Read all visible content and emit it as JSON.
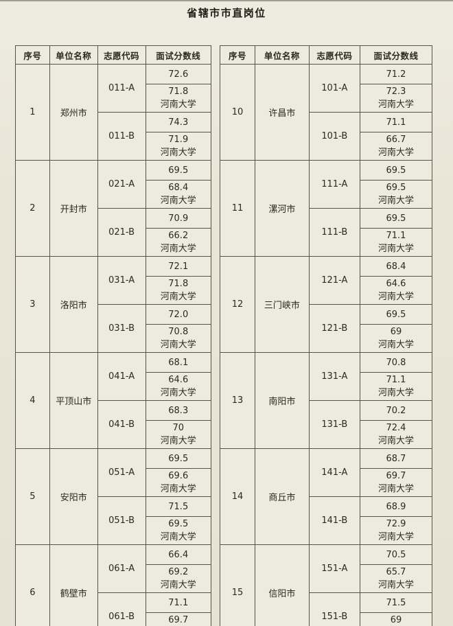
{
  "title": "省辖市市直岗位",
  "columns": [
    "序号",
    "单位名称",
    "志愿代码",
    "面试分数线"
  ],
  "university": "河南大学",
  "left_rows": [
    {
      "seq": "1",
      "city": "郑州市",
      "codes": [
        {
          "code": "011-A",
          "s1": "72.6",
          "s2": "71.8"
        },
        {
          "code": "011-B",
          "s1": "74.3",
          "s2": "71.9"
        }
      ]
    },
    {
      "seq": "2",
      "city": "开封市",
      "codes": [
        {
          "code": "021-A",
          "s1": "69.5",
          "s2": "68.4"
        },
        {
          "code": "021-B",
          "s1": "70.9",
          "s2": "66.2"
        }
      ]
    },
    {
      "seq": "3",
      "city": "洛阳市",
      "codes": [
        {
          "code": "031-A",
          "s1": "72.1",
          "s2": "71.8"
        },
        {
          "code": "031-B",
          "s1": "72.0",
          "s2": "70.8"
        }
      ]
    },
    {
      "seq": "4",
      "city": "平顶山市",
      "codes": [
        {
          "code": "041-A",
          "s1": "68.1",
          "s2": "64.6"
        },
        {
          "code": "041-B",
          "s1": "68.3",
          "s2": "70"
        }
      ]
    },
    {
      "seq": "5",
      "city": "安阳市",
      "codes": [
        {
          "code": "051-A",
          "s1": "69.5",
          "s2": "69.6"
        },
        {
          "code": "051-B",
          "s1": "71.5",
          "s2": "69.5"
        }
      ]
    },
    {
      "seq": "6",
      "city": "鹤壁市",
      "codes": [
        {
          "code": "061-A",
          "s1": "66.4",
          "s2": "69.2"
        },
        {
          "code": "061-B",
          "s1": "71.1",
          "s2": "69.7"
        }
      ]
    }
  ],
  "right_rows": [
    {
      "seq": "10",
      "city": "许昌市",
      "codes": [
        {
          "code": "101-A",
          "s1": "71.2",
          "s2": "72.3"
        },
        {
          "code": "101-B",
          "s1": "71.1",
          "s2": "66.7"
        }
      ]
    },
    {
      "seq": "11",
      "city": "漯河市",
      "codes": [
        {
          "code": "111-A",
          "s1": "69.5",
          "s2": "69.5"
        },
        {
          "code": "111-B",
          "s1": "69.5",
          "s2": "71.1"
        }
      ]
    },
    {
      "seq": "12",
      "city": "三门峡市",
      "codes": [
        {
          "code": "121-A",
          "s1": "68.4",
          "s2": "64.6"
        },
        {
          "code": "121-B",
          "s1": "69.5",
          "s2": "69"
        }
      ]
    },
    {
      "seq": "13",
      "city": "南阳市",
      "codes": [
        {
          "code": "131-A",
          "s1": "70.8",
          "s2": "71.1"
        },
        {
          "code": "131-B",
          "s1": "70.2",
          "s2": "72.4"
        }
      ]
    },
    {
      "seq": "14",
      "city": "商丘市",
      "codes": [
        {
          "code": "141-A",
          "s1": "68.7",
          "s2": "69.7"
        },
        {
          "code": "141-B",
          "s1": "68.9",
          "s2": "72.9"
        }
      ]
    },
    {
      "seq": "15",
      "city": "信阳市",
      "codes": [
        {
          "code": "151-A",
          "s1": "70.5",
          "s2": "65.7"
        },
        {
          "code": "151-B",
          "s1": "71.5",
          "s2": "69"
        }
      ]
    }
  ],
  "colors": {
    "page_background": "#e9e5d7",
    "cell_background": "#edebde",
    "border": "#55524a",
    "text": "#2a2822"
  }
}
